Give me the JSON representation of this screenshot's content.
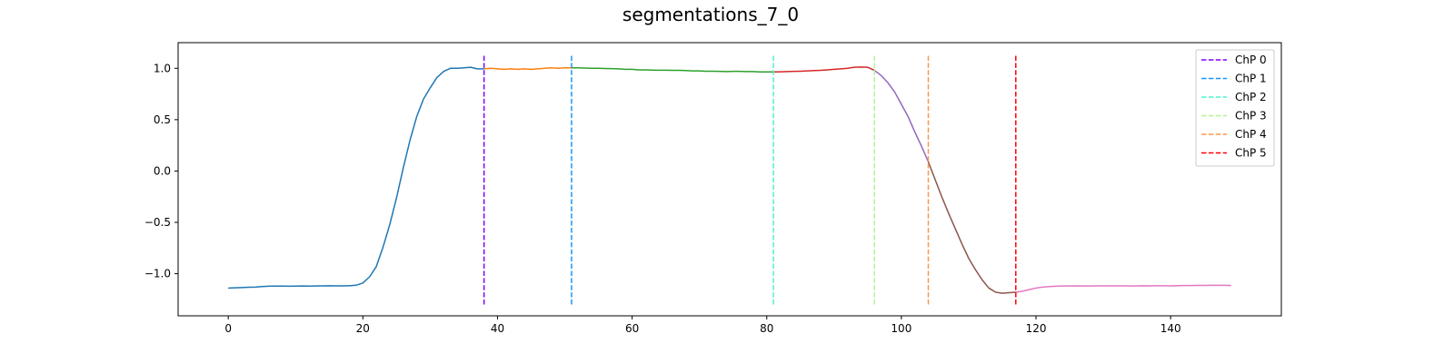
{
  "chart_data": {
    "type": "line",
    "title": "segmentations_7_0",
    "xlabel": "",
    "ylabel": "",
    "xlim": [
      -7.45,
      156.45
    ],
    "ylim": [
      -1.41,
      1.25
    ],
    "xticks": [
      0,
      20,
      40,
      60,
      80,
      100,
      120,
      140
    ],
    "yticks": [
      -1.0,
      -0.5,
      0.0,
      0.5,
      1.0
    ],
    "xtick_labels": [
      "0",
      "20",
      "40",
      "60",
      "80",
      "100",
      "120",
      "140"
    ],
    "ytick_labels": [
      "−1.0",
      "−0.5",
      "0.0",
      "0.5",
      "1.0"
    ],
    "grid": false,
    "legend_position": "top-right",
    "signal": [
      -1.14,
      -1.137,
      -1.135,
      -1.132,
      -1.13,
      -1.125,
      -1.122,
      -1.121,
      -1.121,
      -1.122,
      -1.121,
      -1.12,
      -1.121,
      -1.12,
      -1.118,
      -1.117,
      -1.118,
      -1.118,
      -1.117,
      -1.112,
      -1.09,
      -1.03,
      -0.93,
      -0.74,
      -0.52,
      -0.26,
      0.03,
      0.3,
      0.53,
      0.7,
      0.81,
      0.91,
      0.97,
      1.0,
      1.0,
      1.005,
      1.01,
      0.995,
      0.995,
      1.0,
      0.995,
      0.99,
      0.995,
      0.99,
      0.995,
      0.99,
      0.995,
      1.0,
      1.005,
      1.0,
      1.005,
      1.005,
      1.005,
      1.002,
      1.0,
      1.0,
      0.998,
      0.997,
      0.995,
      0.99,
      0.99,
      0.985,
      0.985,
      0.983,
      0.982,
      0.982,
      0.98,
      0.98,
      0.978,
      0.975,
      0.975,
      0.972,
      0.972,
      0.97,
      0.968,
      0.97,
      0.97,
      0.968,
      0.968,
      0.965,
      0.965,
      0.965,
      0.966,
      0.968,
      0.97,
      0.972,
      0.975,
      0.978,
      0.98,
      0.985,
      0.99,
      0.995,
      1.0,
      1.01,
      1.012,
      1.01,
      0.98,
      0.93,
      0.86,
      0.77,
      0.65,
      0.53,
      0.38,
      0.24,
      0.09,
      -0.08,
      -0.25,
      -0.41,
      -0.56,
      -0.71,
      -0.85,
      -0.96,
      -1.06,
      -1.14,
      -1.18,
      -1.19,
      -1.185,
      -1.18,
      -1.17,
      -1.155,
      -1.14,
      -1.13,
      -1.125,
      -1.122,
      -1.12,
      -1.12,
      -1.118,
      -1.12,
      -1.119,
      -1.118,
      -1.118,
      -1.118,
      -1.118,
      -1.118,
      -1.12,
      -1.118,
      -1.117,
      -1.118,
      -1.117,
      -1.117,
      -1.118,
      -1.116,
      -1.115,
      -1.115,
      -1.114,
      -1.114,
      -1.113,
      -1.113,
      -1.113,
      -1.115
    ],
    "segments": [
      {
        "start": 0,
        "end": 38,
        "color": "#1f77b4"
      },
      {
        "start": 38,
        "end": 51,
        "color": "#ff7f0e"
      },
      {
        "start": 51,
        "end": 81,
        "color": "#2ca02c"
      },
      {
        "start": 81,
        "end": 96,
        "color": "#d62728"
      },
      {
        "start": 96,
        "end": 104,
        "color": "#9467bd"
      },
      {
        "start": 104,
        "end": 117,
        "color": "#8c564b"
      },
      {
        "start": 117,
        "end": 149,
        "color": "#e377c2"
      }
    ],
    "changepoints": [
      {
        "name": "ChP 0",
        "x": 38,
        "color": "#8000ff"
      },
      {
        "name": "ChP 1",
        "x": 51,
        "color": "#1996f3"
      },
      {
        "name": "ChP 2",
        "x": 81,
        "color": "#4df3ce"
      },
      {
        "name": "ChP 3",
        "x": 96,
        "color": "#b2f396"
      },
      {
        "name": "ChP 4",
        "x": 104,
        "color": "#ff964f"
      },
      {
        "name": "ChP 5",
        "x": 117,
        "color": "#ff0000"
      }
    ],
    "changepoint_ylim": [
      -1.3,
      1.13
    ]
  }
}
